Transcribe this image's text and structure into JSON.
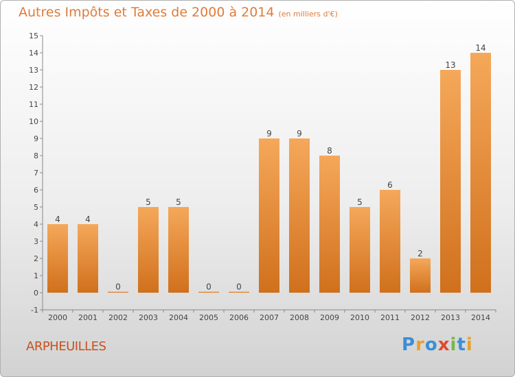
{
  "header": {
    "title": "Autres Impôts et Taxes de 2000 à 2014",
    "unit": "(en milliers d'€)"
  },
  "footer": {
    "place": "ARPHEUILLES",
    "brand": "Proxiti"
  },
  "colors": {
    "bar_light": "#f5a85a",
    "bar_dark": "#d0701c",
    "title": "#e07b39",
    "place": "#c8511d"
  },
  "chart_data": {
    "type": "bar",
    "title": "Autres Impôts et Taxes de 2000 à 2014",
    "subtitle": "(en milliers d'€)",
    "categories": [
      "2000",
      "2001",
      "2002",
      "2003",
      "2004",
      "2005",
      "2006",
      "2007",
      "2008",
      "2009",
      "2010",
      "2011",
      "2012",
      "2013",
      "2014"
    ],
    "values": [
      4,
      4,
      0,
      5,
      5,
      0,
      0,
      9,
      9,
      8,
      5,
      6,
      2,
      13,
      14
    ],
    "ylim": [
      -1,
      15
    ],
    "yticks": [
      -1,
      0,
      1,
      2,
      3,
      4,
      5,
      6,
      7,
      8,
      9,
      10,
      11,
      12,
      13,
      14,
      15
    ],
    "grid": false,
    "legend": "none"
  }
}
